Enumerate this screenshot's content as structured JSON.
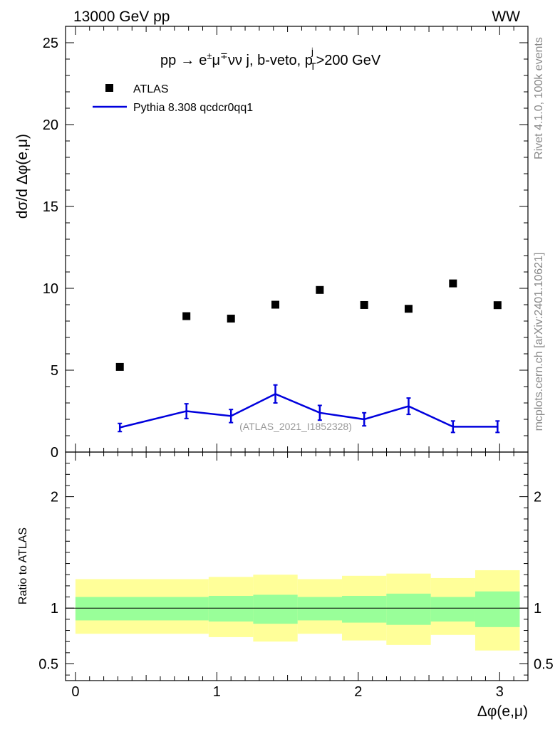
{
  "header": {
    "energy_label": "13000 GeV pp",
    "process_label": "WW",
    "rivet_label": "Rivet 4.1.0,  100k events",
    "mcplots_label": "mcplots.cern.ch [arXiv:2401.10621]"
  },
  "chart_data": [
    {
      "type": "scatter",
      "title_parts": {
        "pp": "pp",
        "arrow": "→",
        "e": "e",
        "pm": "±",
        "mu": "μ",
        "mp": "∓",
        "rest": "νν j, b-veto, p",
        "sup_j": "j",
        "sub_T": "T",
        "cut": ">200 GeV"
      },
      "ylabel": "dσ/d Δφ(e,μ)",
      "xlim": [
        -0.07,
        3.2
      ],
      "ylim": [
        0,
        26
      ],
      "y_ticks": [
        0,
        5,
        10,
        15,
        20,
        25
      ],
      "watermark": "(ATLAS_2021_I1852328)",
      "legend": [
        {
          "name": "ATLAS",
          "marker": "square",
          "color": "#000000"
        },
        {
          "name": "Pythia 8.308 qcdcr0qq1",
          "marker": "line",
          "color": "#0000dd"
        }
      ],
      "series": [
        {
          "name": "ATLAS",
          "x": [
            0.314,
            0.785,
            1.1,
            1.414,
            1.728,
            2.042,
            2.356,
            2.67,
            2.985
          ],
          "y": [
            5.2,
            8.3,
            8.15,
            9.0,
            9.9,
            8.98,
            8.75,
            10.3,
            8.97
          ]
        },
        {
          "name": "Pythia 8.308 qcdcr0qq1",
          "x": [
            0.314,
            0.785,
            1.1,
            1.414,
            1.728,
            2.042,
            2.356,
            2.67,
            2.985
          ],
          "y": [
            1.5,
            2.5,
            2.2,
            3.55,
            2.4,
            2.0,
            2.8,
            1.55,
            1.55
          ],
          "yerr": [
            0.25,
            0.45,
            0.4,
            0.55,
            0.45,
            0.4,
            0.5,
            0.35,
            0.35
          ]
        }
      ]
    },
    {
      "type": "area",
      "ylabel": "Ratio to ATLAS",
      "xlabel": "Δφ(e,μ)",
      "xlim": [
        -0.07,
        3.2
      ],
      "ylim": [
        0.35,
        2.4
      ],
      "y_ticks": [
        0.5,
        1,
        2
      ],
      "x_ticks": [
        0,
        1,
        2,
        3
      ],
      "reference_line": 1,
      "bins": [
        {
          "lo": 0.0,
          "hi": 0.942,
          "stat_lo": 0.89,
          "stat_hi": 1.1,
          "tot_lo": 0.77,
          "tot_hi": 1.26
        },
        {
          "lo": 0.942,
          "hi": 1.257,
          "stat_lo": 0.88,
          "stat_hi": 1.11,
          "tot_lo": 0.74,
          "tot_hi": 1.28
        },
        {
          "lo": 1.257,
          "hi": 1.571,
          "stat_lo": 0.86,
          "stat_hi": 1.12,
          "tot_lo": 0.7,
          "tot_hi": 1.3
        },
        {
          "lo": 1.571,
          "hi": 1.885,
          "stat_lo": 0.89,
          "stat_hi": 1.1,
          "tot_lo": 0.77,
          "tot_hi": 1.26
        },
        {
          "lo": 1.885,
          "hi": 2.199,
          "stat_lo": 0.87,
          "stat_hi": 1.11,
          "tot_lo": 0.71,
          "tot_hi": 1.29
        },
        {
          "lo": 2.199,
          "hi": 2.513,
          "stat_lo": 0.85,
          "stat_hi": 1.13,
          "tot_lo": 0.67,
          "tot_hi": 1.31
        },
        {
          "lo": 2.513,
          "hi": 2.827,
          "stat_lo": 0.88,
          "stat_hi": 1.1,
          "tot_lo": 0.76,
          "tot_hi": 1.27
        },
        {
          "lo": 2.827,
          "hi": 3.142,
          "stat_lo": 0.83,
          "stat_hi": 1.15,
          "tot_lo": 0.62,
          "tot_hi": 1.34
        }
      ]
    }
  ],
  "colors": {
    "data": "#000000",
    "mc": "#0000dd",
    "band_stat": "#99ff99",
    "band_total": "#ffff99",
    "watermark": "#999999",
    "side_text": "#888888"
  }
}
